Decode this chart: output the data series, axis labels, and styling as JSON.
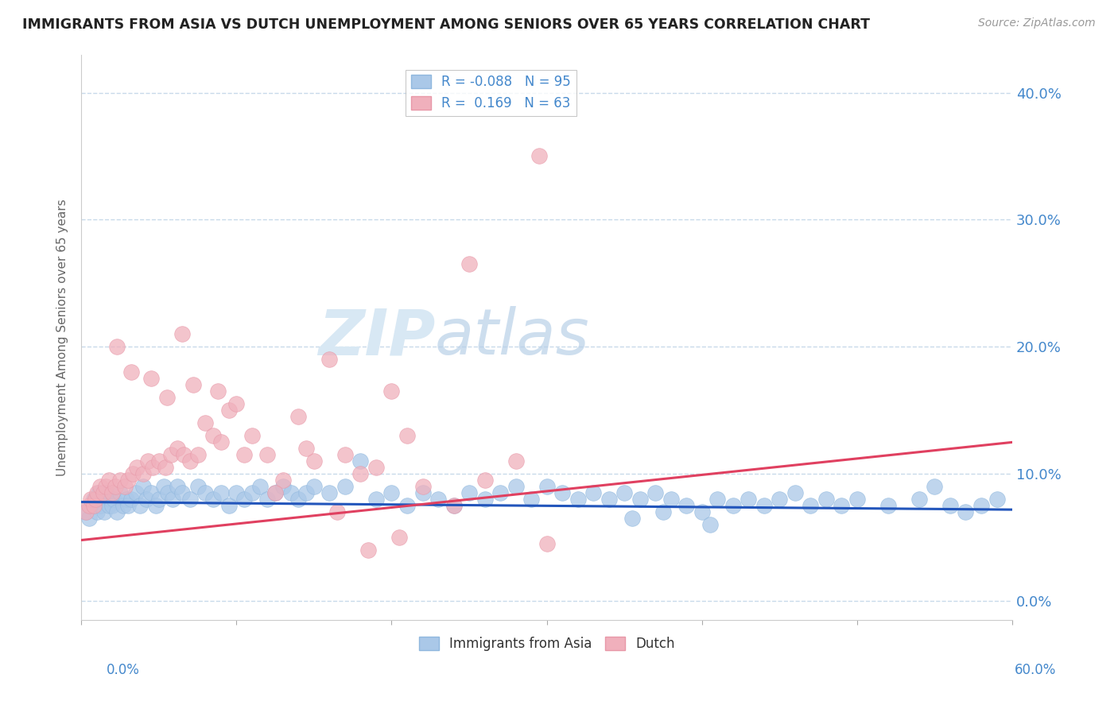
{
  "title": "IMMIGRANTS FROM ASIA VS DUTCH UNEMPLOYMENT AMONG SENIORS OVER 65 YEARS CORRELATION CHART",
  "source": "Source: ZipAtlas.com",
  "ylabel": "Unemployment Among Seniors over 65 years",
  "xlim": [
    0.0,
    60.0
  ],
  "ylim": [
    -1.5,
    43.0
  ],
  "yticks": [
    0.0,
    10.0,
    20.0,
    30.0,
    40.0
  ],
  "legend_blue_r": "-0.088",
  "legend_blue_n": "95",
  "legend_pink_r": "0.169",
  "legend_pink_n": "63",
  "blue_color": "#aac8e8",
  "pink_color": "#f0b0bc",
  "blue_line_color": "#2255bb",
  "pink_line_color": "#e04060",
  "axis_label_color": "#4488cc",
  "grid_color": "#c8daea",
  "watermark_color": "#d8e8f4",
  "blue_scatter_x": [
    0.3,
    0.5,
    0.6,
    0.8,
    0.9,
    1.0,
    1.1,
    1.2,
    1.3,
    1.5,
    1.6,
    1.8,
    1.9,
    2.0,
    2.1,
    2.3,
    2.5,
    2.7,
    2.9,
    3.0,
    3.2,
    3.5,
    3.8,
    4.0,
    4.2,
    4.5,
    4.8,
    5.0,
    5.3,
    5.6,
    5.9,
    6.2,
    6.5,
    7.0,
    7.5,
    8.0,
    8.5,
    9.0,
    9.5,
    10.0,
    10.5,
    11.0,
    11.5,
    12.0,
    12.5,
    13.0,
    13.5,
    14.0,
    14.5,
    15.0,
    16.0,
    17.0,
    18.0,
    19.0,
    20.0,
    21.0,
    22.0,
    23.0,
    24.0,
    25.0,
    26.0,
    27.0,
    28.0,
    29.0,
    30.0,
    31.0,
    32.0,
    33.0,
    34.0,
    35.0,
    36.0,
    37.0,
    38.0,
    39.0,
    40.0,
    41.0,
    42.0,
    43.0,
    44.0,
    45.0,
    46.0,
    47.0,
    48.0,
    49.0,
    50.0,
    52.0,
    54.0,
    55.0,
    56.0,
    57.0,
    58.0,
    59.0,
    35.5,
    37.5,
    40.5
  ],
  "blue_scatter_y": [
    7.0,
    6.5,
    7.5,
    8.0,
    7.5,
    7.0,
    8.5,
    7.5,
    8.0,
    7.0,
    8.5,
    7.5,
    8.0,
    7.5,
    8.0,
    7.0,
    8.5,
    7.5,
    8.0,
    7.5,
    8.0,
    8.5,
    7.5,
    9.0,
    8.0,
    8.5,
    7.5,
    8.0,
    9.0,
    8.5,
    8.0,
    9.0,
    8.5,
    8.0,
    9.0,
    8.5,
    8.0,
    8.5,
    7.5,
    8.5,
    8.0,
    8.5,
    9.0,
    8.0,
    8.5,
    9.0,
    8.5,
    8.0,
    8.5,
    9.0,
    8.5,
    9.0,
    11.0,
    8.0,
    8.5,
    7.5,
    8.5,
    8.0,
    7.5,
    8.5,
    8.0,
    8.5,
    9.0,
    8.0,
    9.0,
    8.5,
    8.0,
    8.5,
    8.0,
    8.5,
    8.0,
    8.5,
    8.0,
    7.5,
    7.0,
    8.0,
    7.5,
    8.0,
    7.5,
    8.0,
    8.5,
    7.5,
    8.0,
    7.5,
    8.0,
    7.5,
    8.0,
    9.0,
    7.5,
    7.0,
    7.5,
    8.0,
    6.5,
    7.0,
    6.0
  ],
  "pink_scatter_x": [
    0.3,
    0.5,
    0.6,
    0.8,
    0.9,
    1.0,
    1.2,
    1.4,
    1.6,
    1.8,
    2.0,
    2.2,
    2.5,
    2.8,
    3.0,
    3.3,
    3.6,
    4.0,
    4.3,
    4.6,
    5.0,
    5.4,
    5.8,
    6.2,
    6.6,
    7.0,
    7.5,
    8.0,
    8.5,
    9.0,
    9.5,
    10.0,
    11.0,
    12.0,
    13.0,
    14.0,
    15.0,
    16.0,
    17.0,
    18.0,
    19.0,
    20.0,
    21.0,
    22.0,
    24.0,
    26.0,
    28.0,
    29.5,
    30.0,
    18.5,
    12.5,
    4.5,
    5.5,
    3.2,
    7.2,
    2.3,
    8.8,
    14.5,
    20.5,
    16.5,
    10.5,
    6.5,
    25.0
  ],
  "pink_scatter_y": [
    7.0,
    7.5,
    8.0,
    7.5,
    8.0,
    8.5,
    9.0,
    8.5,
    9.0,
    9.5,
    8.5,
    9.0,
    9.5,
    9.0,
    9.5,
    10.0,
    10.5,
    10.0,
    11.0,
    10.5,
    11.0,
    10.5,
    11.5,
    12.0,
    11.5,
    11.0,
    11.5,
    14.0,
    13.0,
    12.5,
    15.0,
    15.5,
    13.0,
    11.5,
    9.5,
    14.5,
    11.0,
    19.0,
    11.5,
    10.0,
    10.5,
    16.5,
    13.0,
    9.0,
    7.5,
    9.5,
    11.0,
    35.0,
    4.5,
    4.0,
    8.5,
    17.5,
    16.0,
    18.0,
    17.0,
    20.0,
    16.5,
    12.0,
    5.0,
    7.0,
    11.5,
    21.0,
    26.5
  ]
}
